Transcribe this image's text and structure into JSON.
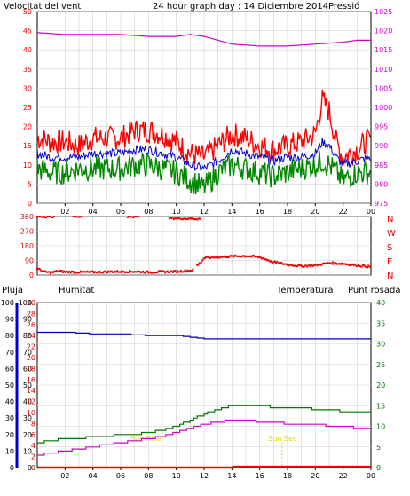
{
  "header": {
    "wind_speed_label": "Velocitat del vent",
    "title": "24 hour graph day : 14 Diciembre 2014",
    "pressure_label": "Pressió"
  },
  "labels": {
    "rain": "Pluja",
    "humidity": "Humitat",
    "temperature": "Temperatura",
    "dewpoint": "Punt rosada"
  },
  "compass": [
    "N",
    "W",
    "S",
    "E",
    "N"
  ],
  "sun_labels": [
    "Sun Rise",
    "Sun Set"
  ],
  "colors": {
    "gust": "#ff0000",
    "avg_wind": "#0000cc",
    "min_wind": "#008800",
    "pressure": "#cc00cc",
    "direction": "#ee0000",
    "rain": "#ee0000",
    "humidity": "#0000aa",
    "temperature": "#007700",
    "dewpoint": "#cc00cc",
    "sun": "#dddd00",
    "grid": "#d0d0d0"
  },
  "chart_data": [
    {
      "type": "line",
      "name": "wind",
      "x_ticks": [
        "02",
        "04",
        "06",
        "08",
        "10",
        "12",
        "14",
        "16",
        "18",
        "20",
        "22",
        "00"
      ],
      "y_left_ticks": [
        0,
        5,
        10,
        15,
        20,
        25,
        30,
        35,
        40,
        45,
        50
      ],
      "y_left_lim": [
        0,
        50
      ],
      "y_right_ticks": [
        975,
        980,
        985,
        990,
        995,
        1000,
        1005,
        1010,
        1015,
        1020,
        1025
      ],
      "y_right_lim": [
        975,
        1025
      ],
      "x_lim": [
        0,
        24
      ],
      "series": [
        {
          "key": "gust",
          "x": [
            0,
            1,
            2,
            3,
            4,
            5,
            6,
            7,
            8,
            9,
            10,
            11,
            12,
            13,
            14,
            15,
            16,
            17,
            18,
            19,
            20,
            20.5,
            21,
            21.5,
            22,
            23,
            24
          ],
          "y": [
            17,
            16,
            16,
            15,
            17,
            17,
            17,
            19,
            19,
            18,
            16,
            13,
            12,
            15,
            18,
            17,
            15,
            14,
            15,
            16,
            18,
            27,
            24,
            16,
            12,
            14,
            17
          ]
        },
        {
          "key": "avg_wind",
          "x": [
            0,
            1,
            2,
            3,
            4,
            5,
            6,
            7,
            8,
            9,
            10,
            11,
            12,
            13,
            14,
            15,
            16,
            17,
            18,
            19,
            20,
            20.5,
            21,
            21.5,
            22,
            23,
            24
          ],
          "y": [
            13,
            12,
            12,
            12,
            13,
            13,
            13,
            14,
            14,
            13,
            12,
            10,
            9,
            11,
            14,
            13,
            12,
            11,
            12,
            12,
            13,
            16,
            15,
            12,
            10,
            11,
            12
          ]
        },
        {
          "key": "min_wind",
          "x": [
            0,
            1,
            2,
            3,
            4,
            5,
            6,
            7,
            8,
            9,
            10,
            11,
            12,
            13,
            14,
            15,
            16,
            17,
            18,
            19,
            20,
            20.5,
            21,
            21.5,
            22,
            23,
            24
          ],
          "y": [
            9,
            8,
            8,
            9,
            9,
            9,
            9,
            10,
            10,
            9,
            8,
            6,
            4,
            8,
            10,
            9,
            8,
            7,
            8,
            9,
            10,
            11,
            10,
            8,
            6,
            8,
            8
          ]
        },
        {
          "key": "pressure",
          "axis": "right",
          "x": [
            0,
            2,
            4,
            6,
            8,
            10,
            11,
            12,
            13,
            14,
            16,
            18,
            20,
            22,
            23,
            24
          ],
          "y": [
            1019.5,
            1019,
            1019,
            1019,
            1018.5,
            1018.5,
            1019,
            1018.5,
            1017.5,
            1016.5,
            1016,
            1016,
            1016.5,
            1017,
            1017.5,
            1017.5
          ]
        }
      ]
    },
    {
      "type": "scatter",
      "name": "wind_direction",
      "y_ticks": [
        0,
        90,
        180,
        270,
        360
      ],
      "y_lim": [
        0,
        360
      ],
      "x_lim": [
        0,
        24
      ],
      "x_ticks": [
        "02",
        "04",
        "06",
        "08",
        "10",
        "12",
        "14",
        "16",
        "18",
        "20",
        "22",
        "00"
      ],
      "segments": [
        {
          "x": [
            0,
            0.5,
            1,
            1.5,
            2,
            3,
            4,
            5,
            6,
            7,
            8,
            9,
            10,
            10.5,
            11.2
          ],
          "y": [
            40,
            20,
            15,
            25,
            20,
            18,
            18,
            20,
            22,
            22,
            18,
            20,
            22,
            25,
            30
          ]
        },
        {
          "x": [
            2.6,
            3.2
          ],
          "y": [
            360,
            360
          ]
        },
        {
          "x": [
            6.5,
            7.3
          ],
          "y": [
            360,
            360
          ]
        },
        {
          "x": [
            0.0,
            1.2
          ],
          "y": [
            360,
            360
          ]
        },
        {
          "x": [
            9.5,
            11.8
          ],
          "y": [
            350,
            345
          ]
        },
        {
          "x": [
            11.5,
            11.8,
            12,
            13,
            14,
            15,
            16,
            16.5,
            17,
            18,
            19,
            20,
            21,
            22,
            23,
            24
          ],
          "y": [
            60,
            80,
            105,
            110,
            115,
            118,
            110,
            95,
            80,
            65,
            55,
            60,
            75,
            70,
            60,
            50
          ]
        }
      ]
    },
    {
      "type": "line",
      "name": "humidity_temperature",
      "x_ticks": [
        "02",
        "04",
        "06",
        "08",
        "10",
        "12",
        "14",
        "16",
        "18",
        "20",
        "22",
        "00"
      ],
      "x_lim": [
        0,
        24
      ],
      "rain_ticks": [
        0,
        10,
        20,
        30,
        40,
        50,
        60,
        70,
        80,
        90,
        100
      ],
      "humidity_ticks": [
        0,
        10,
        20,
        30,
        40,
        50,
        60,
        70,
        80,
        90,
        100
      ],
      "temp_left_ticks": [
        0,
        2,
        4,
        6,
        8,
        10,
        12,
        14,
        16,
        18,
        20,
        22,
        24,
        26,
        28,
        30
      ],
      "temp_right_ticks": [
        0,
        5,
        10,
        15,
        20,
        25,
        30,
        35,
        40
      ],
      "temp_lim": [
        0,
        40
      ],
      "series": [
        {
          "key": "humidity",
          "x": [
            0,
            2,
            4,
            6,
            8,
            10,
            11,
            12,
            14,
            16,
            18,
            20,
            22,
            24
          ],
          "y": [
            82,
            82,
            81,
            81,
            80,
            80,
            79,
            78,
            78,
            78,
            78,
            78,
            78,
            78
          ]
        },
        {
          "key": "temperature",
          "x": [
            0,
            1,
            2,
            3,
            4,
            5,
            6,
            7,
            8,
            9,
            10,
            11,
            12,
            13,
            14,
            15,
            16,
            17,
            18,
            19,
            20,
            21,
            22,
            23,
            24
          ],
          "y": [
            6,
            6.5,
            7,
            7,
            7.5,
            7.5,
            8,
            8,
            8.5,
            9,
            10,
            11.5,
            13,
            14,
            15,
            15,
            15,
            14.5,
            14.5,
            14.5,
            14,
            14,
            13.5,
            13.5,
            13.5
          ]
        },
        {
          "key": "dewpoint",
          "x": [
            0,
            1,
            2,
            3,
            4,
            5,
            6,
            7,
            8,
            9,
            10,
            11,
            12,
            13,
            14,
            15,
            16,
            17,
            18,
            19,
            20,
            21,
            22,
            23,
            24
          ],
          "y": [
            3,
            3.5,
            4,
            4.5,
            5,
            5.5,
            6,
            6.5,
            7,
            7.5,
            8.5,
            9.5,
            10.5,
            11,
            11.5,
            11.5,
            11,
            11,
            10.5,
            10.5,
            10.5,
            10,
            10,
            9.5,
            9.5
          ]
        },
        {
          "key": "rain",
          "x": [
            0,
            14,
            14.1,
            24
          ],
          "y": [
            0,
            0,
            0.5,
            0.5
          ]
        }
      ],
      "sun_rise_hour": 7.8,
      "sun_set_hour": 17.6
    }
  ]
}
